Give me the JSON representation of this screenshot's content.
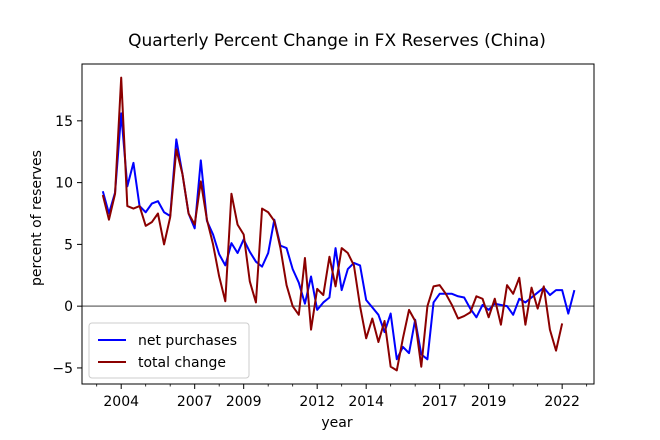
{
  "chart_data": {
    "type": "line",
    "title": "Quarterly Percent Change in FX Reserves (China)",
    "xlabel": "year",
    "ylabel": "percent of reserves",
    "xlim": [
      2002.4,
      2023.3
    ],
    "ylim": [
      -6.3,
      19.6
    ],
    "xticks": [
      2004,
      2007,
      2009,
      2012,
      2014,
      2017,
      2019,
      2022
    ],
    "yticks": [
      -5,
      0,
      5,
      10,
      15
    ],
    "zero_line": true,
    "grid": false,
    "legend_position": "lower-left",
    "colors": {
      "net_purchases": "#0000ff",
      "total_change": "#8b0000",
      "zero_line": "#808080"
    },
    "series": [
      {
        "name": "net purchases",
        "color": "#0000ff",
        "points": [
          [
            2003.25,
            9.3
          ],
          [
            2003.5,
            7.5
          ],
          [
            2003.75,
            9.2
          ],
          [
            2004.0,
            15.6
          ],
          [
            2004.25,
            9.7
          ],
          [
            2004.5,
            11.6
          ],
          [
            2004.75,
            8.1
          ],
          [
            2005.0,
            7.6
          ],
          [
            2005.25,
            8.3
          ],
          [
            2005.5,
            8.5
          ],
          [
            2005.75,
            7.6
          ],
          [
            2006.0,
            7.3
          ],
          [
            2006.25,
            13.5
          ],
          [
            2006.5,
            10.7
          ],
          [
            2006.75,
            7.5
          ],
          [
            2007.0,
            6.3
          ],
          [
            2007.25,
            11.8
          ],
          [
            2007.5,
            6.9
          ],
          [
            2007.75,
            5.8
          ],
          [
            2008.0,
            4.2
          ],
          [
            2008.25,
            3.3
          ],
          [
            2008.5,
            5.1
          ],
          [
            2008.75,
            4.3
          ],
          [
            2009.0,
            5.4
          ],
          [
            2009.25,
            4.4
          ],
          [
            2009.5,
            3.6
          ],
          [
            2009.75,
            3.2
          ],
          [
            2010.0,
            4.3
          ],
          [
            2010.25,
            7.0
          ],
          [
            2010.5,
            4.9
          ],
          [
            2010.75,
            4.7
          ],
          [
            2011.0,
            3.0
          ],
          [
            2011.25,
            1.9
          ],
          [
            2011.5,
            0.2
          ],
          [
            2011.75,
            2.4
          ],
          [
            2012.0,
            -0.3
          ],
          [
            2012.25,
            0.3
          ],
          [
            2012.5,
            0.7
          ],
          [
            2012.75,
            4.7
          ],
          [
            2013.0,
            1.3
          ],
          [
            2013.25,
            3.0
          ],
          [
            2013.5,
            3.5
          ],
          [
            2013.75,
            3.3
          ],
          [
            2014.0,
            0.5
          ],
          [
            2014.25,
            -0.1
          ],
          [
            2014.5,
            -0.7
          ],
          [
            2014.75,
            -2.1
          ],
          [
            2015.0,
            -0.6
          ],
          [
            2015.25,
            -4.3
          ],
          [
            2015.5,
            -3.3
          ],
          [
            2015.75,
            -3.8
          ],
          [
            2016.0,
            -1.1
          ],
          [
            2016.25,
            -3.9
          ],
          [
            2016.5,
            -4.3
          ],
          [
            2016.75,
            0.3
          ],
          [
            2017.0,
            1.0
          ],
          [
            2017.25,
            1.0
          ],
          [
            2017.5,
            1.0
          ],
          [
            2017.75,
            0.8
          ],
          [
            2018.0,
            0.7
          ],
          [
            2018.25,
            -0.2
          ],
          [
            2018.5,
            -0.9
          ],
          [
            2018.75,
            0.1
          ],
          [
            2019.0,
            -0.3
          ],
          [
            2019.25,
            0.2
          ],
          [
            2019.5,
            0.1
          ],
          [
            2019.75,
            0.0
          ],
          [
            2020.0,
            -0.7
          ],
          [
            2020.25,
            0.6
          ],
          [
            2020.5,
            0.3
          ],
          [
            2020.75,
            0.7
          ],
          [
            2021.0,
            1.1
          ],
          [
            2021.25,
            1.5
          ],
          [
            2021.5,
            0.9
          ],
          [
            2021.75,
            1.3
          ],
          [
            2022.0,
            1.3
          ],
          [
            2022.25,
            -0.6
          ],
          [
            2022.5,
            1.3
          ]
        ]
      },
      {
        "name": "total change",
        "color": "#8b0000",
        "points": [
          [
            2003.25,
            9.0
          ],
          [
            2003.5,
            7.0
          ],
          [
            2003.75,
            9.1
          ],
          [
            2004.0,
            18.5
          ],
          [
            2004.25,
            8.1
          ],
          [
            2004.5,
            7.9
          ],
          [
            2004.75,
            8.1
          ],
          [
            2005.0,
            6.5
          ],
          [
            2005.25,
            6.8
          ],
          [
            2005.5,
            7.5
          ],
          [
            2005.75,
            5.0
          ],
          [
            2006.0,
            7.2
          ],
          [
            2006.25,
            12.7
          ],
          [
            2006.5,
            10.7
          ],
          [
            2006.75,
            7.5
          ],
          [
            2007.0,
            6.6
          ],
          [
            2007.25,
            10.1
          ],
          [
            2007.5,
            7.0
          ],
          [
            2007.75,
            5.0
          ],
          [
            2008.0,
            2.4
          ],
          [
            2008.25,
            0.4
          ],
          [
            2008.5,
            9.1
          ],
          [
            2008.75,
            6.6
          ],
          [
            2009.0,
            5.8
          ],
          [
            2009.25,
            2.0
          ],
          [
            2009.5,
            0.3
          ],
          [
            2009.75,
            7.9
          ],
          [
            2010.0,
            7.6
          ],
          [
            2010.25,
            6.9
          ],
          [
            2010.5,
            4.7
          ],
          [
            2010.75,
            1.7
          ],
          [
            2011.0,
            0.0
          ],
          [
            2011.25,
            -0.7
          ],
          [
            2011.5,
            3.9
          ],
          [
            2011.75,
            -1.9
          ],
          [
            2012.0,
            1.4
          ],
          [
            2012.25,
            0.9
          ],
          [
            2012.5,
            4.0
          ],
          [
            2012.75,
            1.6
          ],
          [
            2013.0,
            4.7
          ],
          [
            2013.25,
            4.3
          ],
          [
            2013.5,
            3.3
          ],
          [
            2013.75,
            0.0
          ],
          [
            2014.0,
            -2.6
          ],
          [
            2014.25,
            -1.0
          ],
          [
            2014.5,
            -2.9
          ],
          [
            2014.75,
            -1.2
          ],
          [
            2015.0,
            -4.9
          ],
          [
            2015.25,
            -5.2
          ],
          [
            2015.5,
            -2.6
          ],
          [
            2015.75,
            -0.3
          ],
          [
            2016.0,
            -1.2
          ],
          [
            2016.25,
            -4.9
          ],
          [
            2016.5,
            0.0
          ],
          [
            2016.75,
            1.6
          ],
          [
            2017.0,
            1.7
          ],
          [
            2017.25,
            1.0
          ],
          [
            2017.5,
            0.1
          ],
          [
            2017.75,
            -1.0
          ],
          [
            2018.0,
            -0.8
          ],
          [
            2018.25,
            -0.5
          ],
          [
            2018.5,
            0.8
          ],
          [
            2018.75,
            0.6
          ],
          [
            2019.0,
            -0.9
          ],
          [
            2019.25,
            0.6
          ],
          [
            2019.5,
            -1.5
          ],
          [
            2019.75,
            1.7
          ],
          [
            2020.0,
            1.0
          ],
          [
            2020.25,
            2.3
          ],
          [
            2020.5,
            -1.5
          ],
          [
            2020.75,
            1.5
          ],
          [
            2021.0,
            -0.2
          ],
          [
            2021.25,
            1.6
          ],
          [
            2021.5,
            -1.9
          ],
          [
            2021.75,
            -3.6
          ],
          [
            2022.0,
            -1.4
          ]
        ]
      }
    ]
  }
}
